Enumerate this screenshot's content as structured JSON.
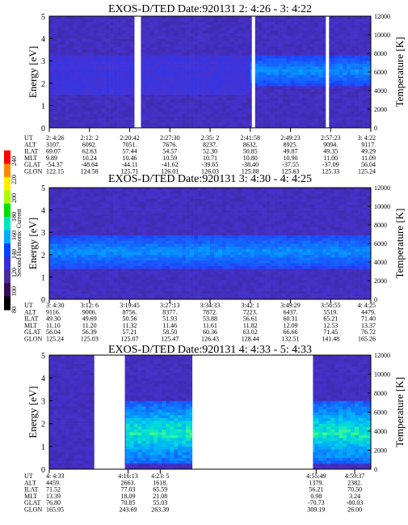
{
  "colorbar": {
    "label": "Second Harmonic Current",
    "ticks": [
      "240",
      "220",
      "200",
      "180",
      "160",
      "140",
      "120",
      "100",
      "80"
    ],
    "colors": [
      "#ff0000",
      "#ff8800",
      "#ffee00",
      "#a8ff00",
      "#00e000",
      "#00e6c0",
      "#00aaff",
      "#0044ff",
      "#3a2cd8",
      "#4a2a9a",
      "#3a0a5a",
      "#000000"
    ]
  },
  "chart_data": [
    {
      "type": "heatmap",
      "title": "EXOS-D/TED   Date:920131  2: 4:26 - 3: 4:22",
      "ylabel": "Energy [eV]",
      "y2label": "Temperature [K]",
      "ylim": [
        0,
        5
      ],
      "y2lim": [
        0,
        12000
      ],
      "yticks": [
        "0",
        "1",
        "2",
        "3",
        "4",
        "5"
      ],
      "y2ticks": [
        "0",
        "2000",
        "4000",
        "6000",
        "8000",
        "10000",
        "12000"
      ],
      "orbit_labels": [
        "UT",
        "ALT",
        "ILAT",
        "MLT",
        "GLAT",
        "GLON"
      ],
      "orbit_columns": [
        [
          "2: 4:26",
          "3107.",
          "69.07",
          "9.89",
          "-54.37",
          "122.15"
        ],
        [
          "2:12: 2",
          "6092.",
          "62.63",
          "10.24",
          "-48.64",
          "124.58"
        ],
        [
          "2:20:42",
          "7051.",
          "57.44",
          "10.46",
          "-44.11",
          "125.71"
        ],
        [
          "2:27:30",
          "7676.",
          "54.57",
          "10.59",
          "-41.62",
          "126.01"
        ],
        [
          "2:35: 2",
          "8237.",
          "52.30",
          "10.71",
          "-39.65",
          "126.03"
        ],
        [
          "2:41:58",
          "8632.",
          "50.85",
          "10.80",
          "-38.40",
          "125.88"
        ],
        [
          "2:49:23",
          "8925.",
          "49.87",
          "10.90",
          "-37.55",
          "125.63"
        ],
        [
          "2:57:23",
          "9094.",
          "49.35",
          "11.00",
          "-37.09",
          "125.33"
        ],
        [
          "3: 4:22",
          "9117.",
          "49.29",
          "11.09",
          "56.04",
          "125.24"
        ]
      ],
      "gaps": [
        [
          0.265,
          0.285
        ],
        [
          0.63,
          0.64
        ],
        [
          0.86,
          0.87
        ]
      ],
      "core_band": {
        "ylow": 1.9,
        "yhigh": 3.2,
        "start": 0.63
      }
    },
    {
      "type": "heatmap",
      "title": "EXOS-D/TED   Date:920131  3: 4:30 - 4: 4:25",
      "ylabel": "Energy [eV]",
      "y2label": "Temperature [K]",
      "ylim": [
        0,
        5
      ],
      "y2lim": [
        0,
        12000
      ],
      "yticks": [
        "0",
        "1",
        "2",
        "3",
        "4",
        "5"
      ],
      "y2ticks": [
        "0",
        "2000",
        "4000",
        "6000",
        "8000",
        "10000",
        "12000"
      ],
      "orbit_labels": [
        "UT",
        "ALT",
        "ILAT",
        "MLT",
        "GLAT",
        "GLON"
      ],
      "orbit_columns": [
        [
          "3: 4:30",
          "9116.",
          "49.30",
          "11.10",
          "56.04",
          "125.24"
        ],
        [
          "3:12: 6",
          "9006.",
          "49.69",
          "11.20",
          "56.39",
          "125.03"
        ],
        [
          "3:19:45",
          "8756.",
          "50.56",
          "11.32",
          "57.21",
          "125.07"
        ],
        [
          "3:27:13",
          "8377.",
          "51.93",
          "11.46",
          "58.50",
          "125.47"
        ],
        [
          "3:34:33",
          "7872.",
          "53.88",
          "11.61",
          "60.36",
          "126.43"
        ],
        [
          "3:42: 1",
          "7223.",
          "56.61",
          "11.82",
          "63.02",
          "128.44"
        ],
        [
          "3:49:29",
          "6437.",
          "60.31",
          "12.09",
          "66.66",
          "132.51"
        ],
        [
          "3:56:55",
          "5519.",
          "65.21",
          "12.53",
          "71.45",
          "141.48"
        ],
        [
          "4: 4:25",
          "4479.",
          "71.40",
          "13.37",
          "76.72",
          "165.26"
        ]
      ],
      "gaps": [],
      "core_band": {
        "ylow": 1.4,
        "yhigh": 2.9,
        "start": 0.0
      }
    },
    {
      "type": "heatmap",
      "title": "EXOS-D/TED   Date:920131  4: 4:33 - 5: 4:33",
      "ylabel": "Energy [eV]",
      "y2label": "Temperature [K]",
      "ylim": [
        0,
        5
      ],
      "y2lim": [
        0,
        12000
      ],
      "yticks": [
        "0",
        "1",
        "2",
        "3",
        "4",
        "5"
      ],
      "y2ticks": [
        "0",
        "2000",
        "4000",
        "6000",
        "8000",
        "10000",
        "12000"
      ],
      "orbit_labels": [
        "UT",
        "ALT",
        "ILAT",
        "MLT",
        "GLAT",
        "GLON"
      ],
      "orbit_columns": [
        [
          "4: 4:33",
          "4459.",
          "71.52",
          "13.39",
          "76.80",
          "165.95"
        ],
        [
          "4:16:13",
          "2663.",
          "77.03",
          "18.09",
          "70.85",
          "243.69"
        ],
        [
          "4:23: 5",
          "1618.",
          "65.59",
          "21.08",
          "55.03",
          "263.39"
        ],
        [
          "4:55:49",
          "1379.",
          "56.21",
          "0.98",
          "-70.73",
          "309.19"
        ],
        [
          "4:59:37",
          "2382.",
          "70.50",
          "3.24",
          "-80.03",
          "26.00"
        ]
      ],
      "gaps": [
        [
          0.14,
          0.235
        ],
        [
          0.445,
          0.82
        ]
      ],
      "core_band": {
        "ylow": 0.2,
        "yhigh": 3.0,
        "start": 0.24
      }
    }
  ]
}
